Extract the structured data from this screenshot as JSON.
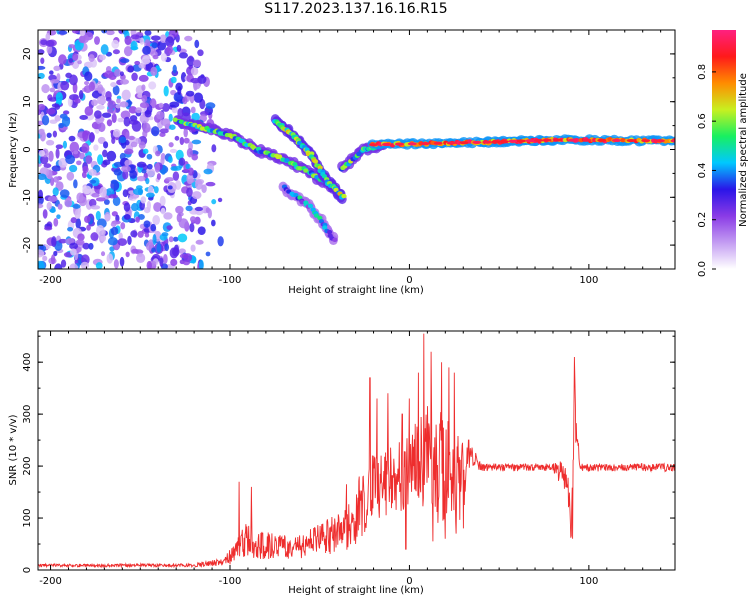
{
  "title": "S117.2023.137.16.16.R15",
  "colors": {
    "snr_line": "#ee2d2d",
    "axis": "#000000",
    "background": "#ffffff"
  },
  "colorbar": {
    "label": "Normalized spectral amplitude",
    "ticks": [
      "0.0",
      "0.2",
      "0.4",
      "0.6",
      "0.8"
    ],
    "colormap": [
      "#ffffff",
      "#c39cf2",
      "#8a3be6",
      "#2a15e8",
      "#00c8ff",
      "#18f060",
      "#c8f020",
      "#ff8c00",
      "#ff1a1a",
      "#ff2080"
    ]
  },
  "chart_data": [
    {
      "type": "heatmap",
      "title": "",
      "xlabel": "Height of straight line (km)",
      "ylabel": "Frequency (Hz)",
      "xlim": [
        -207,
        148
      ],
      "ylim": [
        -25,
        25
      ],
      "x_ticks": [
        "-200",
        "-100",
        "0",
        "100"
      ],
      "y_ticks": [
        "20",
        "10",
        "0",
        "-10",
        "-20"
      ],
      "value_range": [
        0,
        0.97
      ],
      "features": [
        {
          "name": "noise",
          "x_range": [
            -207,
            -105
          ],
          "y_range": [
            -25,
            25
          ],
          "amplitude": [
            0.05,
            0.45
          ]
        },
        {
          "name": "descending_track",
          "points": [
            [
              -130,
              6
            ],
            [
              -115,
              4.5
            ],
            [
              -100,
              3
            ],
            [
              -85,
              0
            ],
            [
              -70,
              -2
            ],
            [
              -55,
              -5
            ],
            [
              -42,
              -8
            ]
          ],
          "amplitude": 0.45
        },
        {
          "name": "lower_branch",
          "points": [
            [
              -75,
              6
            ],
            [
              -65,
              3
            ],
            [
              -55,
              -1
            ],
            [
              -45,
              -7
            ],
            [
              -37,
              -10
            ]
          ],
          "amplitude": 0.5
        },
        {
          "name": "faint_branch",
          "points": [
            [
              -70,
              -8
            ],
            [
              -55,
              -12
            ],
            [
              -42,
              -19
            ]
          ],
          "amplitude": 0.3
        },
        {
          "name": "rising_track",
          "points": [
            [
              -38,
              -4
            ],
            [
              -25,
              0
            ],
            [
              -15,
              1
            ]
          ],
          "amplitude": 0.45
        },
        {
          "name": "steady_track",
          "points": [
            [
              -20,
              1
            ],
            [
              40,
              1.5
            ],
            [
              80,
              2
            ],
            [
              148,
              1.8
            ]
          ],
          "amplitude": 0.75
        }
      ]
    },
    {
      "type": "line",
      "title": "",
      "xlabel": "Height of straight line (km)",
      "ylabel": "SNR (10 * v/v)",
      "xlim": [
        -207,
        148
      ],
      "ylim": [
        0,
        460
      ],
      "x_ticks": [
        "-200",
        "-100",
        "0",
        "100"
      ],
      "y_ticks": [
        "0",
        "100",
        "200",
        "300",
        "400"
      ],
      "series": [
        {
          "envelope": [
            [
              -207,
              12,
              6
            ],
            [
              -150,
              12,
              6
            ],
            [
              -120,
              12,
              6
            ],
            [
              -105,
              22,
              8
            ],
            [
              -100,
              40,
              10
            ],
            [
              -90,
              95,
              25
            ],
            [
              -85,
              70,
              20
            ],
            [
              -78,
              80,
              20
            ],
            [
              -65,
              60,
              20
            ],
            [
              -55,
              80,
              25
            ],
            [
              -45,
              100,
              30
            ],
            [
              -38,
              110,
              35
            ],
            [
              -32,
              140,
              40
            ],
            [
              -25,
              200,
              70
            ],
            [
              -20,
              230,
              90
            ],
            [
              -12,
              240,
              100
            ],
            [
              -5,
              250,
              110
            ],
            [
              0,
              260,
              120
            ],
            [
              5,
              300,
              120
            ],
            [
              10,
              320,
              100
            ],
            [
              15,
              310,
              90
            ],
            [
              20,
              300,
              80
            ],
            [
              28,
              260,
              80
            ],
            [
              35,
              240,
              200
            ],
            [
              40,
              205,
              190
            ],
            [
              80,
              205,
              190
            ],
            [
              85,
              210,
              160
            ],
            [
              88,
              200,
              150
            ],
            [
              90,
              120,
              50
            ],
            [
              92,
              380,
              190
            ],
            [
              95,
              205,
              190
            ],
            [
              148,
              205,
              190
            ]
          ],
          "spikes": [
            [
              -95,
              170
            ],
            [
              -88,
              160
            ],
            [
              -35,
              165
            ],
            [
              -28,
              180
            ],
            [
              -22,
              370
            ],
            [
              -18,
              330
            ],
            [
              -12,
              340
            ],
            [
              -4,
              300
            ],
            [
              0,
              330
            ],
            [
              5,
              380
            ],
            [
              8,
              455
            ],
            [
              12,
              420
            ],
            [
              18,
              400
            ],
            [
              22,
              390
            ],
            [
              25,
              380
            ],
            [
              33,
              250
            ],
            [
              92,
              410
            ],
            [
              91,
              60
            ],
            [
              -2,
              40
            ],
            [
              13,
              55
            ],
            [
              20,
              60
            ],
            [
              26,
              70
            ],
            [
              30,
              80
            ]
          ]
        }
      ]
    }
  ]
}
